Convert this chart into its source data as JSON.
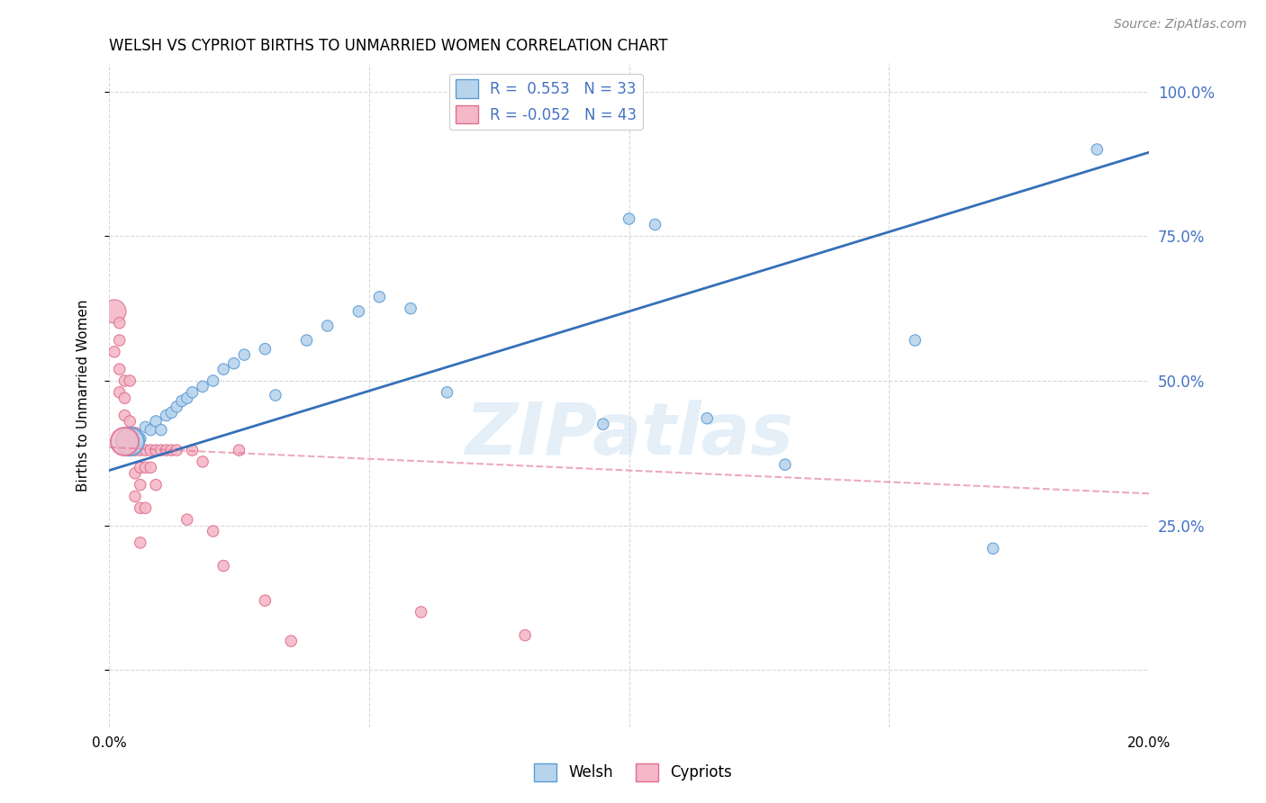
{
  "title": "WELSH VS CYPRIOT BIRTHS TO UNMARRIED WOMEN CORRELATION CHART",
  "source": "Source: ZipAtlas.com",
  "ylabel": "Births to Unmarried Women",
  "welsh_R": "0.553",
  "welsh_N": "33",
  "cypriot_R": "-0.052",
  "cypriot_N": "43",
  "welsh_color": "#b8d4ec",
  "welsh_edge_color": "#5b9bd5",
  "cypriot_color": "#f4b8c8",
  "cypriot_edge_color": "#e07090",
  "welsh_line_color": "#3570b8",
  "cypriot_line_color": "#e07090",
  "watermark": "ZIPatlas",
  "background_color": "#ffffff",
  "grid_color": "#d8d8d8",
  "welsh_x": [
    0.005,
    0.006,
    0.007,
    0.008,
    0.009,
    0.01,
    0.011,
    0.012,
    0.013,
    0.014,
    0.015,
    0.016,
    0.018,
    0.02,
    0.022,
    0.024,
    0.026,
    0.03,
    0.032,
    0.038,
    0.042,
    0.048,
    0.052,
    0.058,
    0.065,
    0.095,
    0.1,
    0.105,
    0.115,
    0.13,
    0.155,
    0.17,
    0.19
  ],
  "welsh_y": [
    0.395,
    0.4,
    0.42,
    0.415,
    0.43,
    0.415,
    0.44,
    0.445,
    0.455,
    0.465,
    0.47,
    0.48,
    0.49,
    0.5,
    0.52,
    0.53,
    0.545,
    0.555,
    0.475,
    0.57,
    0.595,
    0.62,
    0.645,
    0.625,
    0.48,
    0.425,
    0.78,
    0.77,
    0.435,
    0.355,
    0.57,
    0.21,
    0.9
  ],
  "welsh_sizes": [
    80,
    80,
    80,
    80,
    80,
    80,
    80,
    80,
    80,
    80,
    80,
    80,
    80,
    80,
    80,
    80,
    80,
    80,
    80,
    80,
    80,
    80,
    80,
    80,
    80,
    80,
    80,
    80,
    80,
    80,
    80,
    80,
    80
  ],
  "cypriot_x": [
    0.001,
    0.001,
    0.002,
    0.002,
    0.002,
    0.002,
    0.003,
    0.003,
    0.003,
    0.003,
    0.004,
    0.004,
    0.004,
    0.005,
    0.005,
    0.005,
    0.005,
    0.006,
    0.006,
    0.006,
    0.006,
    0.006,
    0.007,
    0.007,
    0.007,
    0.008,
    0.008,
    0.009,
    0.009,
    0.01,
    0.011,
    0.012,
    0.013,
    0.015,
    0.016,
    0.018,
    0.02,
    0.022,
    0.025,
    0.03,
    0.035,
    0.06,
    0.08
  ],
  "cypriot_y": [
    0.62,
    0.55,
    0.6,
    0.57,
    0.52,
    0.48,
    0.5,
    0.47,
    0.44,
    0.4,
    0.38,
    0.43,
    0.5,
    0.34,
    0.38,
    0.41,
    0.3,
    0.38,
    0.35,
    0.32,
    0.28,
    0.22,
    0.38,
    0.35,
    0.28,
    0.38,
    0.35,
    0.38,
    0.32,
    0.38,
    0.38,
    0.38,
    0.38,
    0.26,
    0.38,
    0.36,
    0.24,
    0.18,
    0.38,
    0.12,
    0.05,
    0.1,
    0.06
  ],
  "cypriot_sizes": [
    350,
    80,
    80,
    80,
    80,
    80,
    80,
    80,
    80,
    80,
    80,
    80,
    80,
    80,
    80,
    80,
    80,
    80,
    80,
    80,
    80,
    80,
    80,
    80,
    80,
    80,
    80,
    80,
    80,
    80,
    80,
    80,
    80,
    80,
    80,
    80,
    80,
    80,
    80,
    80,
    80,
    80,
    80
  ],
  "xlim": [
    0.0,
    0.2
  ],
  "ylim": [
    -0.1,
    1.05
  ],
  "xtick_positions": [
    0.0,
    0.05,
    0.1,
    0.15,
    0.2
  ],
  "ytick_positions": [
    0.0,
    0.25,
    0.5,
    0.75,
    1.0
  ],
  "ytick_right_labels": [
    "",
    "25.0%",
    "50.0%",
    "75.0%",
    "100.0%"
  ],
  "welsh_line_x": [
    0.0,
    0.2
  ],
  "welsh_line_y": [
    0.345,
    0.895
  ],
  "cypriot_line_x": [
    0.0,
    0.2
  ],
  "cypriot_line_y": [
    0.385,
    0.305
  ]
}
